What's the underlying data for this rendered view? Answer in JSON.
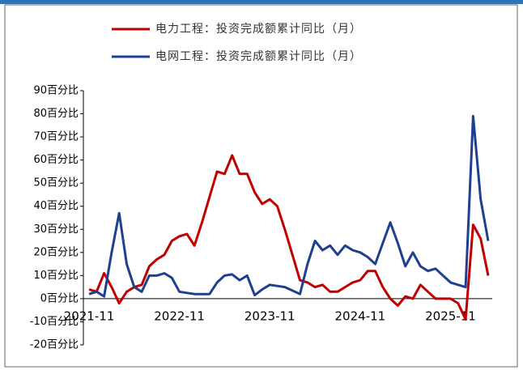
{
  "chart_data": {
    "type": "line",
    "categories": [
      "2021-11",
      null,
      null,
      null,
      null,
      null,
      null,
      null,
      null,
      null,
      null,
      null,
      "2022-11",
      null,
      null,
      null,
      null,
      null,
      null,
      null,
      null,
      null,
      null,
      null,
      "2023-11",
      null,
      null,
      null,
      null,
      null,
      null,
      null,
      null,
      null,
      null,
      null,
      "2024-11",
      null,
      null,
      null,
      null,
      null,
      null,
      null,
      null,
      null,
      null,
      null,
      "2025-11",
      null,
      null,
      null,
      null,
      null
    ],
    "series": [
      {
        "name": "电力工程：投资完成额累计同比（月）",
        "color": "#c00000",
        "values": [
          4,
          3,
          11,
          5,
          -2,
          3,
          5,
          6,
          14,
          17,
          19,
          25,
          27,
          28,
          23,
          33,
          44,
          55,
          54,
          62,
          54,
          54,
          46,
          41,
          43,
          40,
          30,
          19,
          8,
          7,
          5,
          6,
          3,
          3,
          5,
          7,
          8,
          12,
          12,
          5,
          0,
          -3,
          1,
          0,
          6,
          3,
          0,
          0,
          0,
          -2,
          -9,
          32,
          26,
          10
        ]
      },
      {
        "name": "电网工程：投资完成额累计同比（月）",
        "color": "#1f3f8f",
        "values": [
          2,
          3,
          1,
          20,
          37,
          15,
          5,
          3,
          10,
          10,
          11,
          9,
          3,
          2.5,
          2,
          2,
          2,
          7,
          10,
          10.5,
          8,
          10,
          1.5,
          4,
          6,
          5.5,
          5,
          3.5,
          2,
          15,
          25,
          21,
          23,
          19,
          23,
          21,
          20,
          18,
          15,
          24,
          33,
          24,
          14,
          20,
          14,
          12,
          13,
          10,
          7,
          6,
          5,
          79,
          43,
          25
        ]
      }
    ],
    "ylim": [
      -20,
      90
    ],
    "yticks": [
      {
        "value": -20,
        "label": "-20百分比"
      },
      {
        "value": -10,
        "label": "-10百分比"
      },
      {
        "value": 0,
        "label": "0百分比"
      },
      {
        "value": 10,
        "label": "10百分比"
      },
      {
        "value": 20,
        "label": "20百分比"
      },
      {
        "value": 30,
        "label": "30百分比"
      },
      {
        "value": 40,
        "label": "40百分比"
      },
      {
        "value": 50,
        "label": "50百分比"
      },
      {
        "value": 60,
        "label": "60百分比"
      },
      {
        "value": 70,
        "label": "70百分比"
      },
      {
        "value": 80,
        "label": "80百分比"
      },
      {
        "value": 90,
        "label": "90百分比"
      }
    ]
  }
}
